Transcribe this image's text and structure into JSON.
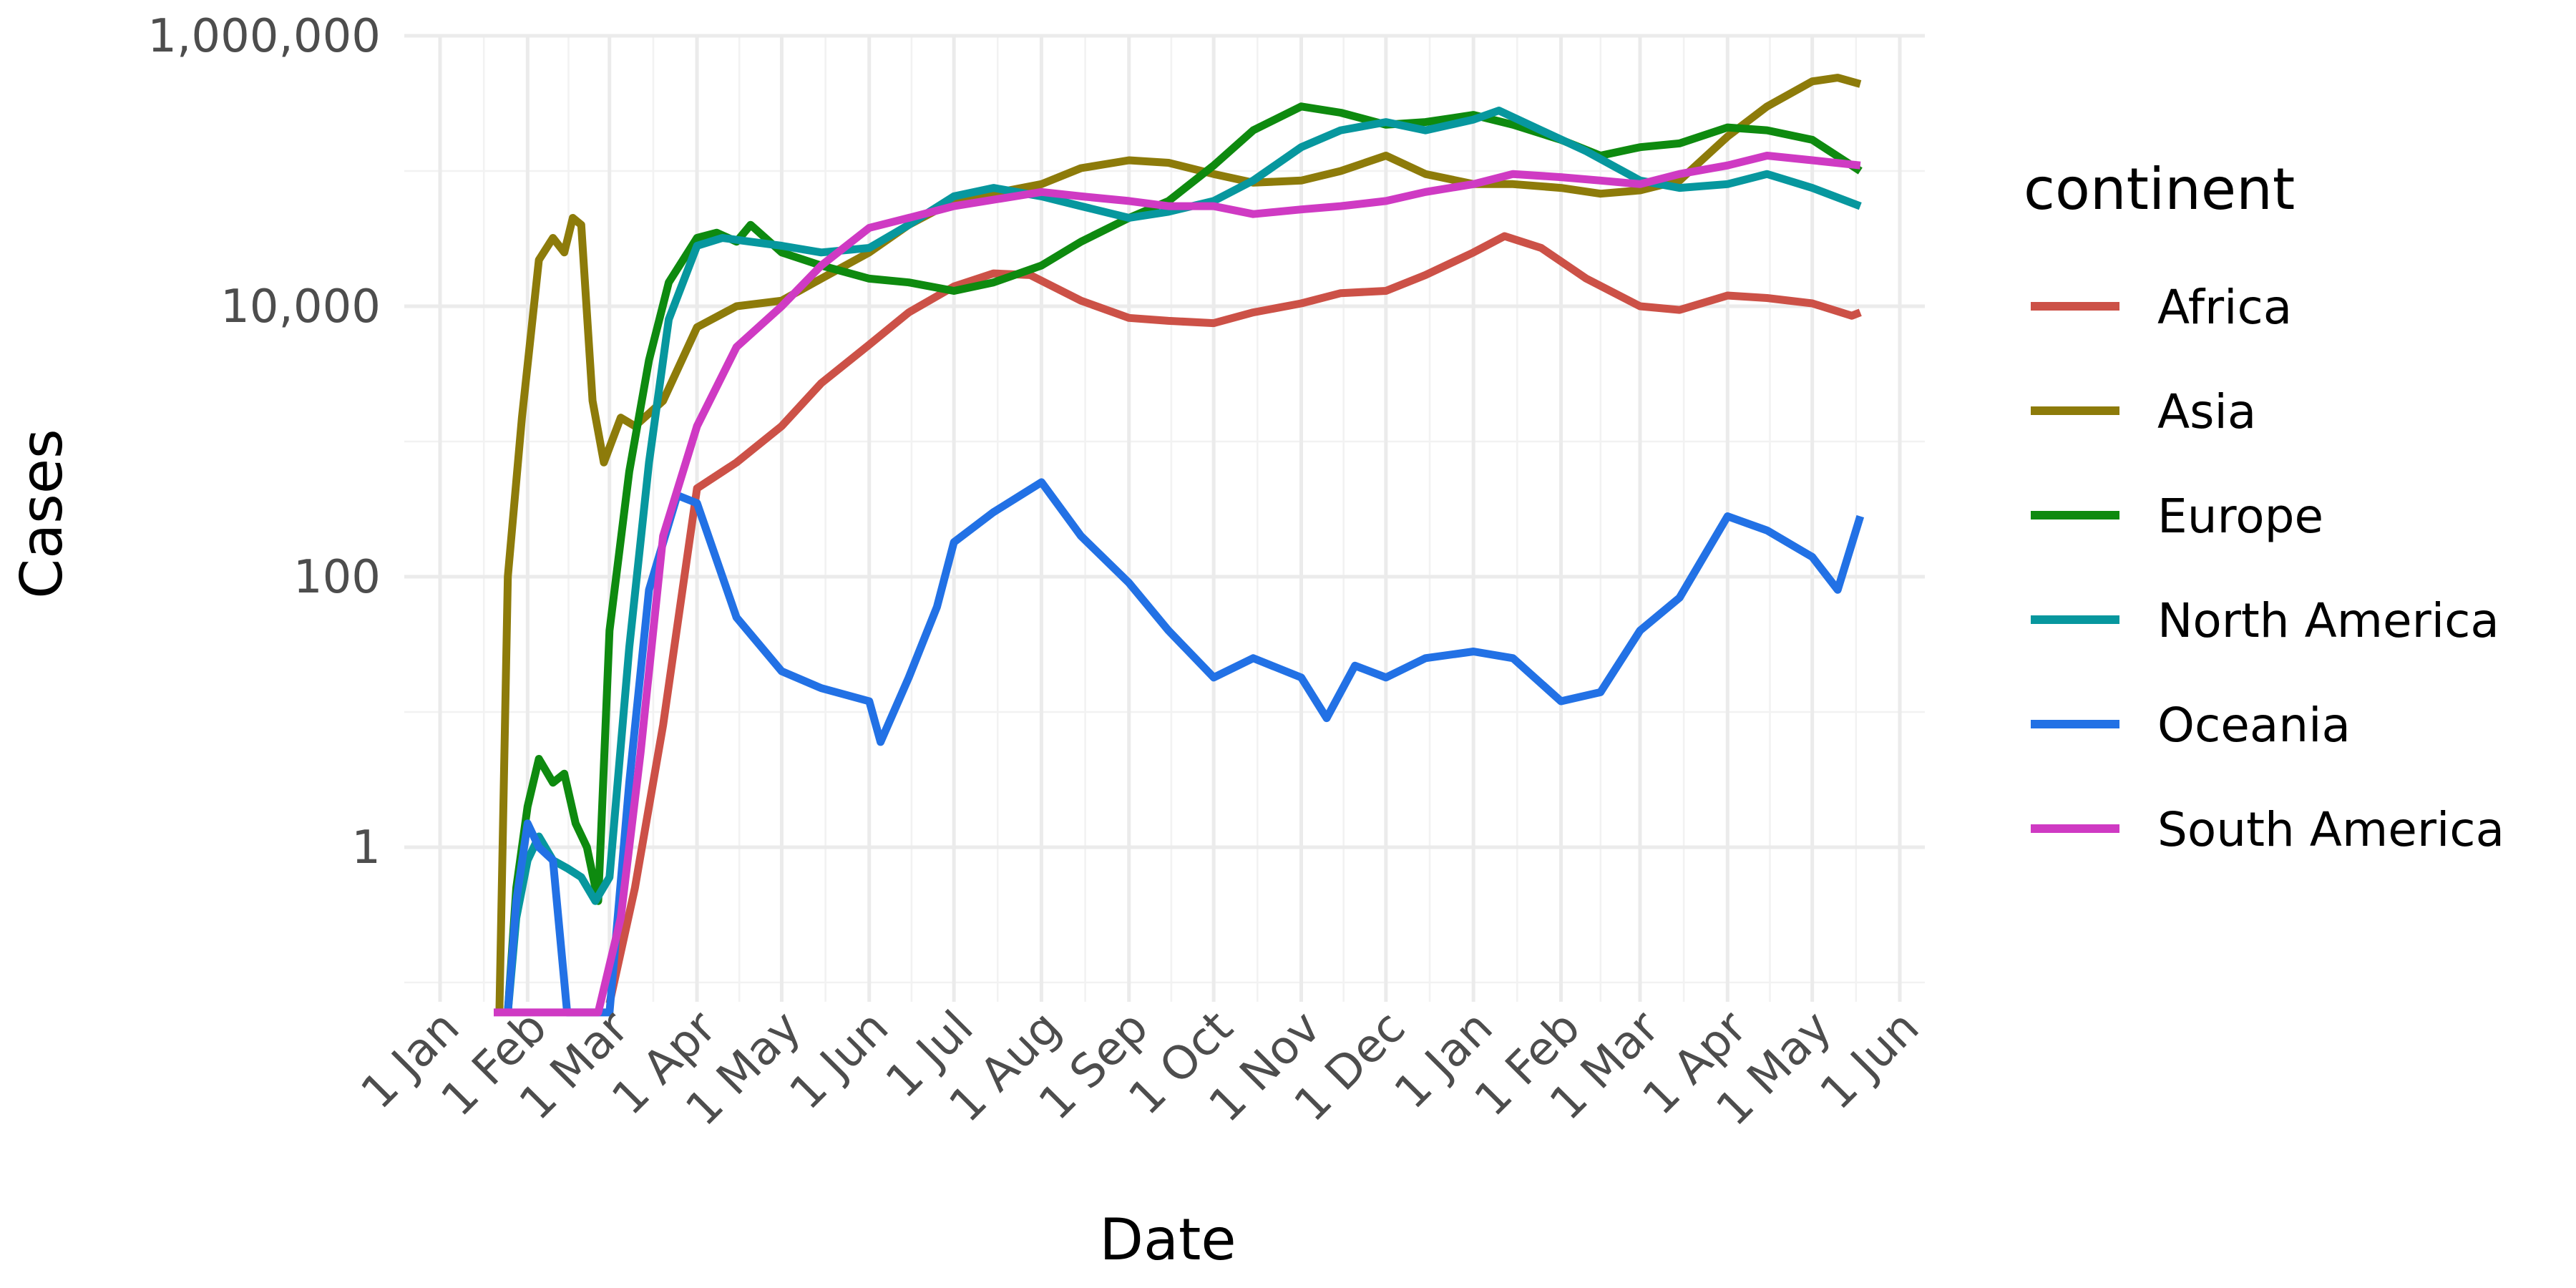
{
  "chart_data": {
    "type": "line",
    "title": "",
    "xlabel": "Date",
    "ylabel": "Cases",
    "y_scale": "log10",
    "ylim": [
      0.06,
      1000000
    ],
    "xlim": [
      "2020-01-01",
      "2021-06-01"
    ],
    "grid": true,
    "legend": {
      "title": "continent",
      "position": "right"
    },
    "y_ticks": [
      {
        "value": 1,
        "label": "1"
      },
      {
        "value": 100,
        "label": "100"
      },
      {
        "value": 10000,
        "label": "10,000"
      },
      {
        "value": 1000000,
        "label": "1,000,000"
      }
    ],
    "x_ticks": [
      {
        "date": "2020-01-01",
        "label": "1 Jan"
      },
      {
        "date": "2020-02-01",
        "label": "1 Feb"
      },
      {
        "date": "2020-03-01",
        "label": "1 Mar"
      },
      {
        "date": "2020-04-01",
        "label": "1 Apr"
      },
      {
        "date": "2020-05-01",
        "label": "1 May"
      },
      {
        "date": "2020-06-01",
        "label": "1 Jun"
      },
      {
        "date": "2020-07-01",
        "label": "1 Jul"
      },
      {
        "date": "2020-08-01",
        "label": "1 Aug"
      },
      {
        "date": "2020-09-01",
        "label": "1 Sep"
      },
      {
        "date": "2020-10-01",
        "label": "1 Oct"
      },
      {
        "date": "2020-11-01",
        "label": "1 Nov"
      },
      {
        "date": "2020-12-01",
        "label": "1 Dec"
      },
      {
        "date": "2021-01-01",
        "label": "1 Jan"
      },
      {
        "date": "2021-02-01",
        "label": "1 Feb"
      },
      {
        "date": "2021-03-01",
        "label": "1 Mar"
      },
      {
        "date": "2021-04-01",
        "label": "1 Apr"
      },
      {
        "date": "2021-05-01",
        "label": "1 May"
      },
      {
        "date": "2021-06-01",
        "label": "1 Jun"
      }
    ],
    "series": [
      {
        "name": "Africa",
        "color": "#cc5147",
        "points": [
          [
            "2020-03-01",
            0.07
          ],
          [
            "2020-03-10",
            0.5
          ],
          [
            "2020-03-20",
            8
          ],
          [
            "2020-04-01",
            450
          ],
          [
            "2020-04-15",
            700
          ],
          [
            "2020-05-01",
            1300
          ],
          [
            "2020-05-15",
            2700
          ],
          [
            "2020-06-01",
            5200
          ],
          [
            "2020-06-15",
            9000
          ],
          [
            "2020-07-01",
            14000
          ],
          [
            "2020-07-15",
            17500
          ],
          [
            "2020-07-28",
            17000
          ],
          [
            "2020-08-15",
            11000
          ],
          [
            "2020-09-01",
            8200
          ],
          [
            "2020-09-15",
            7800
          ],
          [
            "2020-10-01",
            7500
          ],
          [
            "2020-10-15",
            9000
          ],
          [
            "2020-11-01",
            10500
          ],
          [
            "2020-11-15",
            12500
          ],
          [
            "2020-12-01",
            13000
          ],
          [
            "2020-12-15",
            17000
          ],
          [
            "2021-01-01",
            25000
          ],
          [
            "2021-01-12",
            33000
          ],
          [
            "2021-01-25",
            27000
          ],
          [
            "2021-02-10",
            16000
          ],
          [
            "2021-03-01",
            10000
          ],
          [
            "2021-03-15",
            9400
          ],
          [
            "2021-04-01",
            12000
          ],
          [
            "2021-04-15",
            11500
          ],
          [
            "2021-05-01",
            10500
          ],
          [
            "2021-05-15",
            8500
          ],
          [
            "2021-05-18",
            9000
          ]
        ]
      },
      {
        "name": "Asia",
        "color": "#8d7b0a",
        "points": [
          [
            "2020-01-22",
            0.06
          ],
          [
            "2020-01-25",
            100
          ],
          [
            "2020-01-30",
            1500
          ],
          [
            "2020-02-05",
            22000
          ],
          [
            "2020-02-10",
            32000
          ],
          [
            "2020-02-14",
            25000
          ],
          [
            "2020-02-17",
            45000
          ],
          [
            "2020-02-20",
            40000
          ],
          [
            "2020-02-24",
            2000
          ],
          [
            "2020-02-28",
            700
          ],
          [
            "2020-03-05",
            1500
          ],
          [
            "2020-03-10",
            1300
          ],
          [
            "2020-03-20",
            2000
          ],
          [
            "2020-04-01",
            7000
          ],
          [
            "2020-04-15",
            10000
          ],
          [
            "2020-05-01",
            11000
          ],
          [
            "2020-05-15",
            16000
          ],
          [
            "2020-06-01",
            25000
          ],
          [
            "2020-06-15",
            40000
          ],
          [
            "2020-07-01",
            60000
          ],
          [
            "2020-08-01",
            80000
          ],
          [
            "2020-08-15",
            105000
          ],
          [
            "2020-09-01",
            120000
          ],
          [
            "2020-09-15",
            115000
          ],
          [
            "2020-10-01",
            95000
          ],
          [
            "2020-10-15",
            82000
          ],
          [
            "2020-11-01",
            85000
          ],
          [
            "2020-11-15",
            100000
          ],
          [
            "2020-12-01",
            130000
          ],
          [
            "2020-12-15",
            95000
          ],
          [
            "2021-01-01",
            80000
          ],
          [
            "2021-01-15",
            80000
          ],
          [
            "2021-02-01",
            75000
          ],
          [
            "2021-02-15",
            68000
          ],
          [
            "2021-03-01",
            72000
          ],
          [
            "2021-03-15",
            85000
          ],
          [
            "2021-04-01",
            180000
          ],
          [
            "2021-04-15",
            300000
          ],
          [
            "2021-05-01",
            460000
          ],
          [
            "2021-05-10",
            490000
          ],
          [
            "2021-05-18",
            440000
          ]
        ]
      },
      {
        "name": "Europe",
        "color": "#0e8a0f",
        "points": [
          [
            "2020-01-25",
            0.06
          ],
          [
            "2020-01-28",
            0.5
          ],
          [
            "2020-02-01",
            2
          ],
          [
            "2020-02-05",
            4.5
          ],
          [
            "2020-02-10",
            3
          ],
          [
            "2020-02-14",
            3.5
          ],
          [
            "2020-02-18",
            1.5
          ],
          [
            "2020-02-22",
            1
          ],
          [
            "2020-02-26",
            0.4
          ],
          [
            "2020-03-01",
            40
          ],
          [
            "2020-03-08",
            600
          ],
          [
            "2020-03-15",
            4000
          ],
          [
            "2020-03-22",
            15000
          ],
          [
            "2020-04-01",
            32000
          ],
          [
            "2020-04-08",
            35000
          ],
          [
            "2020-04-15",
            30000
          ],
          [
            "2020-04-20",
            40000
          ],
          [
            "2020-05-01",
            25000
          ],
          [
            "2020-05-15",
            20000
          ],
          [
            "2020-06-01",
            16000
          ],
          [
            "2020-06-15",
            15000
          ],
          [
            "2020-07-01",
            13000
          ],
          [
            "2020-07-15",
            15000
          ],
          [
            "2020-08-01",
            20000
          ],
          [
            "2020-08-15",
            30000
          ],
          [
            "2020-09-01",
            45000
          ],
          [
            "2020-09-15",
            60000
          ],
          [
            "2020-10-01",
            110000
          ],
          [
            "2020-10-15",
            200000
          ],
          [
            "2020-11-01",
            300000
          ],
          [
            "2020-11-15",
            270000
          ],
          [
            "2020-12-01",
            220000
          ],
          [
            "2020-12-15",
            230000
          ],
          [
            "2021-01-01",
            260000
          ],
          [
            "2021-01-15",
            220000
          ],
          [
            "2021-02-01",
            170000
          ],
          [
            "2021-02-15",
            130000
          ],
          [
            "2021-03-01",
            150000
          ],
          [
            "2021-03-15",
            160000
          ],
          [
            "2021-04-01",
            210000
          ],
          [
            "2021-04-15",
            200000
          ],
          [
            "2021-05-01",
            170000
          ],
          [
            "2021-05-18",
            100000
          ]
        ]
      },
      {
        "name": "North America",
        "color": "#07979e",
        "points": [
          [
            "2020-01-25",
            0.06
          ],
          [
            "2020-01-28",
            0.3
          ],
          [
            "2020-02-01",
            0.8
          ],
          [
            "2020-02-05",
            1.2
          ],
          [
            "2020-02-10",
            0.8
          ],
          [
            "2020-02-15",
            0.7
          ],
          [
            "2020-02-20",
            0.6
          ],
          [
            "2020-02-25",
            0.4
          ],
          [
            "2020-03-01",
            0.6
          ],
          [
            "2020-03-08",
            30
          ],
          [
            "2020-03-15",
            700
          ],
          [
            "2020-03-22",
            8000
          ],
          [
            "2020-04-01",
            28000
          ],
          [
            "2020-04-10",
            32000
          ],
          [
            "2020-04-20",
            30000
          ],
          [
            "2020-05-01",
            28000
          ],
          [
            "2020-05-15",
            25000
          ],
          [
            "2020-06-01",
            27000
          ],
          [
            "2020-06-15",
            40000
          ],
          [
            "2020-07-01",
            65000
          ],
          [
            "2020-07-15",
            75000
          ],
          [
            "2020-08-01",
            65000
          ],
          [
            "2020-08-15",
            55000
          ],
          [
            "2020-09-01",
            45000
          ],
          [
            "2020-09-15",
            50000
          ],
          [
            "2020-10-01",
            60000
          ],
          [
            "2020-10-15",
            85000
          ],
          [
            "2020-11-01",
            150000
          ],
          [
            "2020-11-15",
            200000
          ],
          [
            "2020-12-01",
            230000
          ],
          [
            "2020-12-15",
            200000
          ],
          [
            "2021-01-01",
            240000
          ],
          [
            "2021-01-10",
            280000
          ],
          [
            "2021-01-25",
            200000
          ],
          [
            "2021-02-10",
            140000
          ],
          [
            "2021-03-01",
            85000
          ],
          [
            "2021-03-15",
            75000
          ],
          [
            "2021-04-01",
            80000
          ],
          [
            "2021-04-15",
            95000
          ],
          [
            "2021-05-01",
            75000
          ],
          [
            "2021-05-18",
            55000
          ]
        ]
      },
      {
        "name": "Oceania",
        "color": "#2271e5",
        "points": [
          [
            "2020-01-25",
            0.06
          ],
          [
            "2020-01-28",
            0.4
          ],
          [
            "2020-02-01",
            1.5
          ],
          [
            "2020-02-05",
            1
          ],
          [
            "2020-02-10",
            0.8
          ],
          [
            "2020-02-15",
            0.06
          ],
          [
            "2020-02-24",
            0.06
          ],
          [
            "2020-03-01",
            0.06
          ],
          [
            "2020-03-08",
            3
          ],
          [
            "2020-03-15",
            80
          ],
          [
            "2020-03-25",
            400
          ],
          [
            "2020-04-01",
            350
          ],
          [
            "2020-04-15",
            50
          ],
          [
            "2020-05-01",
            20
          ],
          [
            "2020-05-15",
            15
          ],
          [
            "2020-06-01",
            12
          ],
          [
            "2020-06-05",
            6
          ],
          [
            "2020-06-15",
            18
          ],
          [
            "2020-06-25",
            60
          ],
          [
            "2020-07-01",
            180
          ],
          [
            "2020-07-15",
            300
          ],
          [
            "2020-08-01",
            500
          ],
          [
            "2020-08-15",
            200
          ],
          [
            "2020-09-01",
            90
          ],
          [
            "2020-09-15",
            40
          ],
          [
            "2020-10-01",
            18
          ],
          [
            "2020-10-15",
            25
          ],
          [
            "2020-11-01",
            18
          ],
          [
            "2020-11-10",
            9
          ],
          [
            "2020-11-20",
            22
          ],
          [
            "2020-12-01",
            18
          ],
          [
            "2020-12-15",
            25
          ],
          [
            "2021-01-01",
            28
          ],
          [
            "2021-01-15",
            25
          ],
          [
            "2021-02-01",
            12
          ],
          [
            "2021-02-15",
            14
          ],
          [
            "2021-03-01",
            40
          ],
          [
            "2021-03-15",
            70
          ],
          [
            "2021-04-01",
            280
          ],
          [
            "2021-04-15",
            220
          ],
          [
            "2021-05-01",
            140
          ],
          [
            "2021-05-10",
            80
          ],
          [
            "2021-05-18",
            280
          ]
        ]
      },
      {
        "name": "South America",
        "color": "#cf3ac3",
        "points": [
          [
            "2020-01-20",
            0.06
          ],
          [
            "2020-02-26",
            0.06
          ],
          [
            "2020-03-05",
            0.3
          ],
          [
            "2020-03-12",
            5
          ],
          [
            "2020-03-20",
            200
          ],
          [
            "2020-04-01",
            1300
          ],
          [
            "2020-04-15",
            5000
          ],
          [
            "2020-05-01",
            10000
          ],
          [
            "2020-05-15",
            20000
          ],
          [
            "2020-06-01",
            38000
          ],
          [
            "2020-06-15",
            45000
          ],
          [
            "2020-07-01",
            55000
          ],
          [
            "2020-08-01",
            70000
          ],
          [
            "2020-08-15",
            65000
          ],
          [
            "2020-09-01",
            60000
          ],
          [
            "2020-09-15",
            55000
          ],
          [
            "2020-10-01",
            55000
          ],
          [
            "2020-10-15",
            48000
          ],
          [
            "2020-11-01",
            52000
          ],
          [
            "2020-11-15",
            55000
          ],
          [
            "2020-12-01",
            60000
          ],
          [
            "2020-12-15",
            70000
          ],
          [
            "2021-01-01",
            80000
          ],
          [
            "2021-01-15",
            95000
          ],
          [
            "2021-02-01",
            90000
          ],
          [
            "2021-02-15",
            85000
          ],
          [
            "2021-03-01",
            80000
          ],
          [
            "2021-03-15",
            95000
          ],
          [
            "2021-04-01",
            110000
          ],
          [
            "2021-04-15",
            130000
          ],
          [
            "2021-05-01",
            120000
          ],
          [
            "2021-05-18",
            110000
          ]
        ]
      }
    ]
  }
}
